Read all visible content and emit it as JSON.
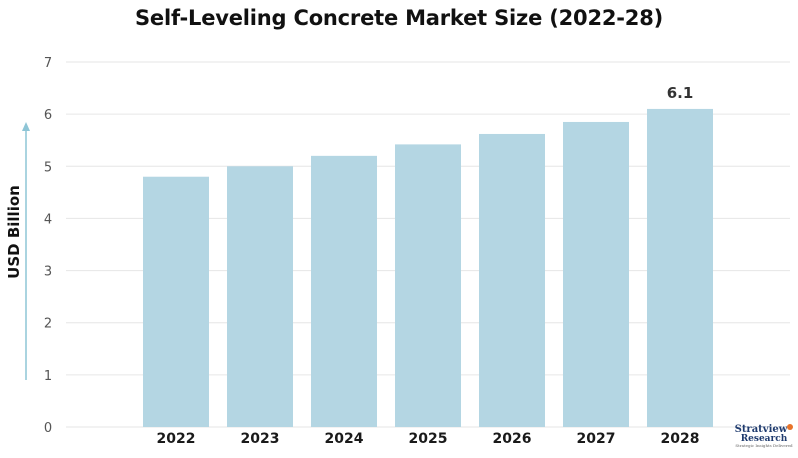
{
  "chart_data": {
    "type": "bar",
    "title": "Self-Leveling Concrete Market Size (2022-28)",
    "ylabel": "USD Billion",
    "xlabel": "",
    "categories": [
      "2022",
      "2023",
      "2024",
      "2025",
      "2026",
      "2027",
      "2028"
    ],
    "values": [
      4.8,
      5.0,
      5.2,
      5.42,
      5.62,
      5.85,
      6.1
    ],
    "data_labels": [
      null,
      null,
      null,
      null,
      null,
      null,
      "6.1"
    ],
    "ylim": [
      0,
      7
    ],
    "yticks": [
      0,
      1,
      2,
      3,
      4,
      5,
      6,
      7
    ],
    "grid": true,
    "bar_color": "#b4d6e3",
    "grid_color": "#e6e6e6",
    "axis_arrow_color": "#8ec5d6"
  },
  "logo": {
    "line1": "Stratview",
    "line2": "Research",
    "tagline": "Strategic Insights Delivered"
  }
}
